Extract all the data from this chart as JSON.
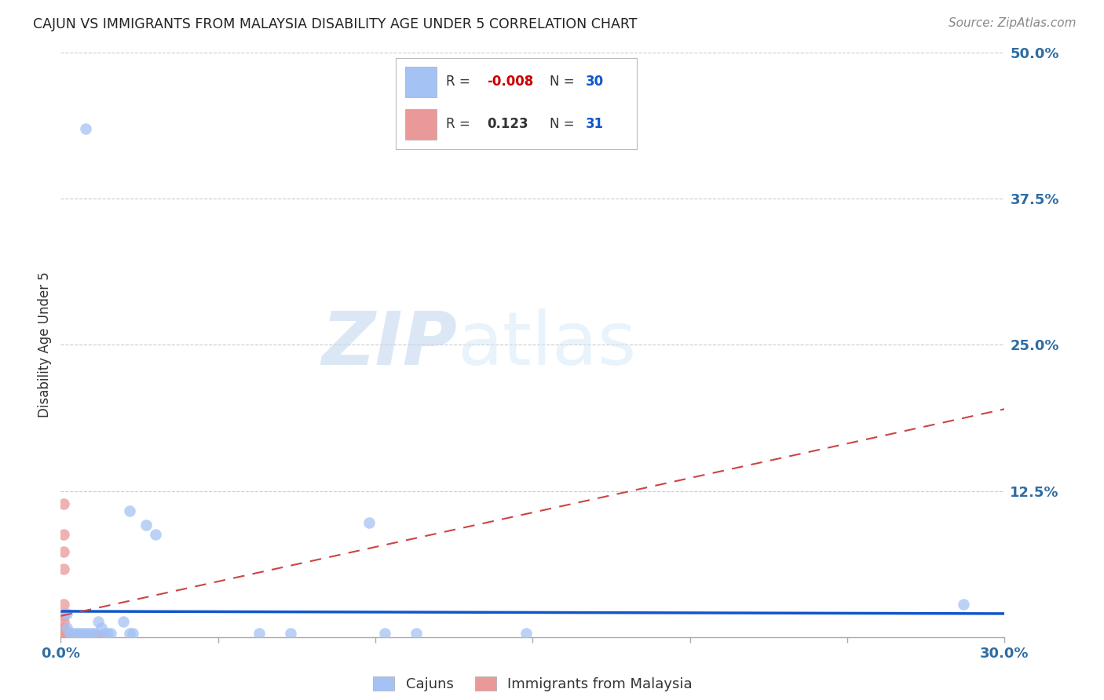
{
  "title": "CAJUN VS IMMIGRANTS FROM MALAYSIA DISABILITY AGE UNDER 5 CORRELATION CHART",
  "source": "Source: ZipAtlas.com",
  "ylabel": "Disability Age Under 5",
  "xlim": [
    0.0,
    0.3
  ],
  "ylim": [
    0.0,
    0.5
  ],
  "yticks_right": [
    0.0,
    0.125,
    0.25,
    0.375,
    0.5
  ],
  "yticklabels_right": [
    "",
    "12.5%",
    "25.0%",
    "37.5%",
    "50.0%"
  ],
  "cajun_color": "#a4c2f4",
  "malaysia_color": "#ea9999",
  "trendline_cajun_color": "#1155cc",
  "trendline_malaysia_color": "#cc4444",
  "background_color": "#ffffff",
  "watermark_zip": "ZIP",
  "watermark_atlas": "atlas",
  "cajun_scatter": [
    [
      0.008,
      0.435
    ],
    [
      0.022,
      0.108
    ],
    [
      0.027,
      0.096
    ],
    [
      0.03,
      0.088
    ],
    [
      0.002,
      0.02
    ],
    [
      0.002,
      0.008
    ],
    [
      0.003,
      0.003
    ],
    [
      0.004,
      0.003
    ],
    [
      0.005,
      0.003
    ],
    [
      0.006,
      0.003
    ],
    [
      0.007,
      0.003
    ],
    [
      0.008,
      0.003
    ],
    [
      0.009,
      0.003
    ],
    [
      0.01,
      0.003
    ],
    [
      0.011,
      0.003
    ],
    [
      0.012,
      0.013
    ],
    [
      0.013,
      0.008
    ],
    [
      0.014,
      0.003
    ],
    [
      0.015,
      0.003
    ],
    [
      0.016,
      0.003
    ],
    [
      0.02,
      0.013
    ],
    [
      0.022,
      0.003
    ],
    [
      0.023,
      0.003
    ],
    [
      0.063,
      0.003
    ],
    [
      0.073,
      0.003
    ],
    [
      0.098,
      0.098
    ],
    [
      0.103,
      0.003
    ],
    [
      0.113,
      0.003
    ],
    [
      0.148,
      0.003
    ],
    [
      0.287,
      0.028
    ]
  ],
  "malaysia_scatter": [
    [
      0.001,
      0.114
    ],
    [
      0.001,
      0.088
    ],
    [
      0.001,
      0.073
    ],
    [
      0.001,
      0.058
    ],
    [
      0.001,
      0.028
    ],
    [
      0.001,
      0.018
    ],
    [
      0.001,
      0.013
    ],
    [
      0.001,
      0.008
    ],
    [
      0.001,
      0.007
    ],
    [
      0.001,
      0.005
    ],
    [
      0.001,
      0.003
    ],
    [
      0.001,
      0.003
    ],
    [
      0.001,
      0.002
    ],
    [
      0.001,
      0.001
    ],
    [
      0.002,
      0.004
    ],
    [
      0.002,
      0.003
    ],
    [
      0.002,
      0.002
    ],
    [
      0.003,
      0.003
    ],
    [
      0.003,
      0.002
    ],
    [
      0.004,
      0.002
    ],
    [
      0.004,
      0.001
    ],
    [
      0.005,
      0.001
    ],
    [
      0.005,
      0.001
    ],
    [
      0.006,
      0.001
    ],
    [
      0.007,
      0.001
    ],
    [
      0.008,
      0.001
    ],
    [
      0.009,
      0.001
    ],
    [
      0.01,
      0.001
    ],
    [
      0.011,
      0.001
    ],
    [
      0.012,
      0.001
    ],
    [
      0.013,
      0.001
    ]
  ],
  "cajun_trendline": [
    0.0,
    0.3,
    0.022,
    0.02
  ],
  "malaysia_trendline": [
    0.0,
    0.3,
    0.018,
    0.195
  ]
}
